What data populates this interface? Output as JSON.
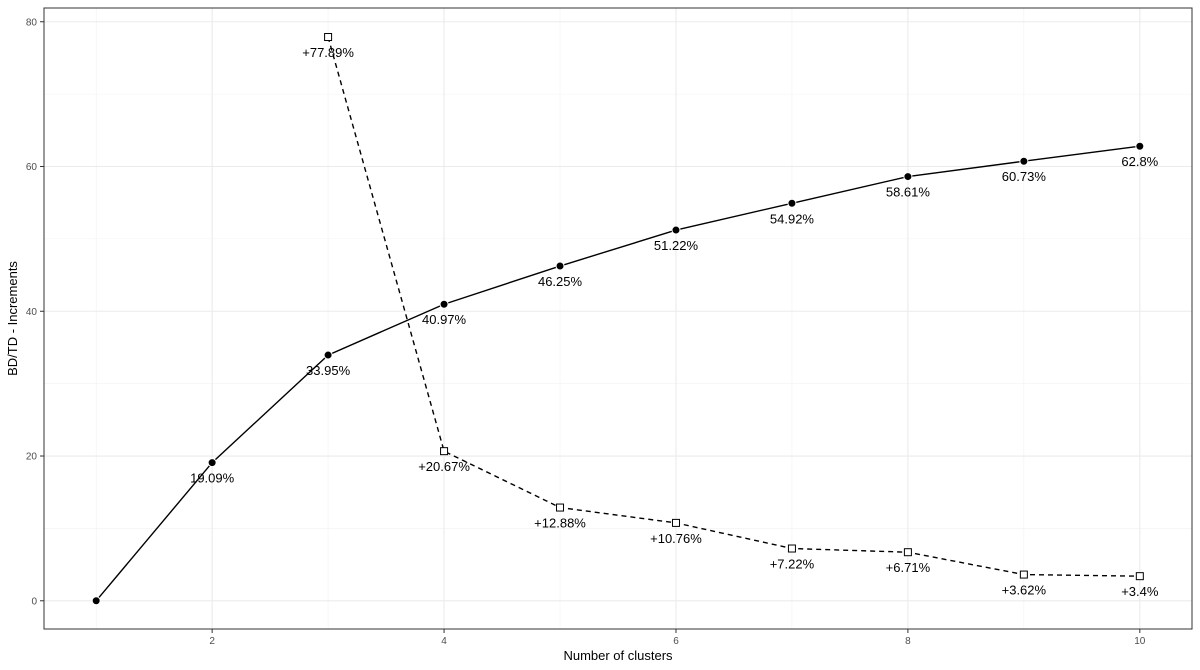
{
  "chart_data": {
    "type": "line",
    "title": "",
    "xlabel": "Number of clusters",
    "ylabel": "BD/TD - Increments",
    "xlim": [
      0.55,
      10.45
    ],
    "ylim": [
      -3.9,
      81.9
    ],
    "x_ticks": [
      2,
      4,
      6,
      8,
      10
    ],
    "y_ticks": [
      0,
      20,
      40,
      60,
      80
    ],
    "grid": true,
    "legend": "none",
    "series": [
      {
        "marker": "filled-circle",
        "line_style": "solid",
        "color": "#000000",
        "x": [
          1,
          2,
          3,
          4,
          5,
          6,
          7,
          8,
          9,
          10
        ],
        "y": [
          0,
          19.09,
          33.95,
          40.97,
          46.25,
          51.22,
          54.92,
          58.61,
          60.73,
          62.8
        ],
        "labels": [
          "",
          "19.09%",
          "33.95%",
          "40.97%",
          "46.25%",
          "51.22%",
          "54.92%",
          "58.61%",
          "60.73%",
          "62.8%"
        ]
      },
      {
        "marker": "open-square",
        "line_style": "dashed",
        "color": "#000000",
        "x": [
          3,
          4,
          5,
          6,
          7,
          8,
          9,
          10
        ],
        "y": [
          77.89,
          20.67,
          12.88,
          10.76,
          7.22,
          6.71,
          3.62,
          3.4
        ],
        "labels": [
          "+77.89%",
          "+20.67%",
          "+12.88%",
          "+10.76%",
          "+7.22%",
          "+6.71%",
          "+3.62%",
          "+3.4%"
        ]
      }
    ]
  }
}
